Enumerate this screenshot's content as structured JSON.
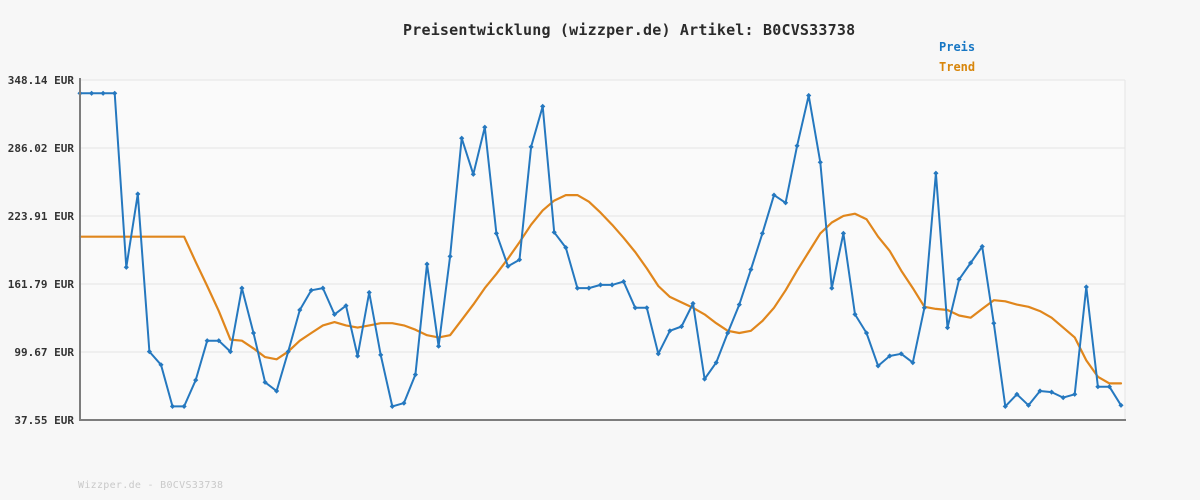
{
  "title": "Preisentwicklung (wizzper.de) Artikel: B0CVS33738",
  "legend": {
    "preis": "Preis",
    "trend": "Trend"
  },
  "watermark": "Wizzper.de - B0CVS33738",
  "colors": {
    "preis_line": "#2578bf",
    "trend_line": "#e0861c",
    "legend_preis_text": "#1777c4",
    "legend_trend_text": "#d8860b",
    "axis": "#7d7d7d",
    "gridline": "#e4e4e4",
    "plot_background": "#fafafa",
    "page_background": "#f7f7f7",
    "tick_label_text": "#333333",
    "watermark_text": "#c9c9c9"
  },
  "chart_data": {
    "type": "line",
    "title": "Preisentwicklung (wizzper.de) Artikel: B0CVS33738",
    "unit": "EUR",
    "ylim": [
      37.55,
      348.14
    ],
    "y_ticks": [
      348.14,
      286.02,
      223.91,
      161.79,
      99.67,
      37.55
    ],
    "y_tick_labels": [
      "348.14 EUR",
      "286.02 EUR",
      "223.91 EUR",
      "161.79 EUR",
      "99.67 EUR",
      "37.55 EUR"
    ],
    "x_tick_labels_visible": false,
    "grid": true,
    "legend_position": "top-right",
    "series": [
      {
        "name": "Preis",
        "color": "#2578bf",
        "marker": "diamond",
        "values": [
          336,
          336,
          336,
          336,
          177,
          244,
          100,
          88,
          50,
          50,
          74,
          110,
          110,
          100,
          158,
          117,
          72,
          64,
          100,
          138,
          156,
          158,
          134,
          142,
          96,
          154,
          97,
          50,
          53,
          79,
          180,
          105,
          187,
          295,
          262,
          305,
          208,
          178,
          184,
          287,
          324,
          209,
          195,
          158,
          158,
          161,
          161,
          164,
          140,
          140,
          98,
          119,
          123,
          144,
          75,
          90,
          117,
          143,
          175,
          208,
          243,
          236,
          288,
          334,
          273,
          158,
          208,
          134,
          117,
          87,
          96,
          98,
          90,
          140,
          263,
          122,
          166,
          181,
          196,
          126,
          50,
          61,
          51,
          64,
          63,
          58,
          61,
          159,
          68,
          68,
          51
        ]
      },
      {
        "name": "Trend",
        "color": "#e0861c",
        "marker": "none",
        "values": [
          205,
          205,
          205,
          205,
          205,
          205,
          205,
          205,
          205,
          205,
          182,
          160,
          137,
          111,
          110,
          103,
          95,
          93,
          100,
          110,
          117,
          124,
          127,
          124,
          122,
          124,
          126,
          126,
          124,
          120,
          115,
          113,
          115,
          129,
          143,
          158,
          171,
          185,
          200,
          216,
          229,
          238,
          243,
          243,
          237,
          227,
          216,
          204,
          191,
          176,
          160,
          150,
          145,
          140,
          134,
          126,
          119,
          117,
          119,
          128,
          140,
          156,
          174,
          191,
          208,
          218,
          224,
          226,
          221,
          205,
          192,
          174,
          158,
          141,
          139,
          138,
          133,
          131,
          139,
          147,
          146,
          143,
          141,
          137,
          131,
          122,
          113,
          92,
          77,
          71,
          71
        ]
      }
    ]
  }
}
